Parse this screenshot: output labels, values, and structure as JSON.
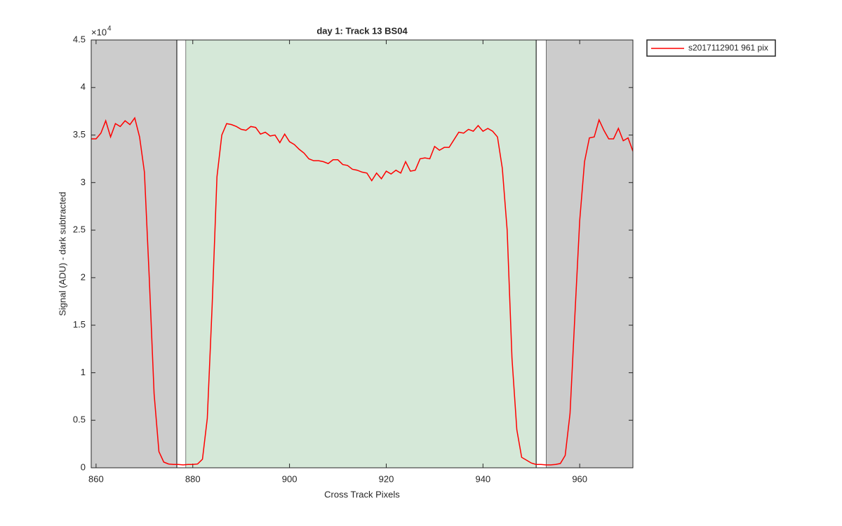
{
  "chart_data": {
    "type": "line",
    "title": "day 1: Track 13  BS04",
    "xlabel": "Cross Track Pixels",
    "ylabel": "Signal (ADU) - dark subtracted",
    "yscale_base": "×10",
    "yscale_exponent": "4",
    "xlim": [
      859,
      971
    ],
    "ylim": [
      0,
      45000
    ],
    "xticks": [
      860,
      880,
      900,
      920,
      940,
      960
    ],
    "yticks": [
      0,
      {
        "value": 5000,
        "label": "0.5"
      },
      {
        "value": 10000,
        "label": "1"
      },
      {
        "value": 15000,
        "label": "1.5"
      },
      {
        "value": 20000,
        "label": "2"
      },
      {
        "value": 25000,
        "label": "2.5"
      },
      {
        "value": 30000,
        "label": "3"
      },
      {
        "value": 35000,
        "label": "3.5"
      },
      {
        "value": 40000,
        "label": "4"
      },
      {
        "value": 45000,
        "label": "4.5"
      }
    ],
    "grid": false,
    "legend": "outside-top-right",
    "regions": [
      {
        "x0": 859,
        "x1": 876.7,
        "color": "#cccccc"
      },
      {
        "x0": 876.7,
        "x1": 878.6,
        "color": "#ffffff"
      },
      {
        "x0": 878.6,
        "x1": 951.0,
        "color": "#d5e8d8"
      },
      {
        "x0": 951.0,
        "x1": 953.1,
        "color": "#ffffff"
      },
      {
        "x0": 953.1,
        "x1": 971,
        "color": "#cccccc"
      }
    ],
    "x": [
      859,
      860,
      861,
      862,
      863,
      864,
      865,
      866,
      867,
      868,
      869,
      870,
      871,
      872,
      873,
      874,
      875,
      876,
      877,
      878,
      879,
      880,
      881,
      882,
      883,
      884,
      885,
      886,
      887,
      888,
      889,
      890,
      891,
      892,
      893,
      894,
      895,
      896,
      897,
      898,
      899,
      900,
      901,
      902,
      903,
      904,
      905,
      906,
      907,
      908,
      909,
      910,
      911,
      912,
      913,
      914,
      915,
      916,
      917,
      918,
      919,
      920,
      921,
      922,
      923,
      924,
      925,
      926,
      927,
      928,
      929,
      930,
      931,
      932,
      933,
      934,
      935,
      936,
      937,
      938,
      939,
      940,
      941,
      942,
      943,
      944,
      945,
      946,
      947,
      948,
      949,
      950,
      951,
      952,
      953,
      954,
      955,
      956,
      957,
      958,
      959,
      960,
      961,
      962,
      963,
      964,
      965,
      966,
      967,
      968,
      969,
      970,
      971
    ],
    "series": [
      {
        "name": "s2017112901 961 pix",
        "color": "#ff0000",
        "values": [
          34600,
          34600,
          35200,
          36500,
          34800,
          36200,
          35900,
          36500,
          36100,
          36800,
          34800,
          31100,
          20000,
          7800,
          1700,
          600,
          400,
          350,
          350,
          300,
          350,
          350,
          400,
          900,
          5200,
          17000,
          30600,
          35000,
          36200,
          36100,
          35900,
          35600,
          35500,
          35900,
          35800,
          35100,
          35300,
          34900,
          35000,
          34200,
          35100,
          34300,
          34000,
          33500,
          33100,
          32500,
          32300,
          32300,
          32200,
          32000,
          32400,
          32400,
          31900,
          31800,
          31400,
          31300,
          31100,
          31000,
          30200,
          31000,
          30400,
          31200,
          30900,
          31300,
          31000,
          32200,
          31200,
          31300,
          32500,
          32600,
          32500,
          33800,
          33400,
          33700,
          33700,
          34500,
          35300,
          35200,
          35600,
          35400,
          36000,
          35400,
          35700,
          35400,
          34800,
          31500,
          25000,
          11500,
          4000,
          1100,
          800,
          500,
          350,
          350,
          300,
          300,
          350,
          450,
          1300,
          5700,
          16000,
          26000,
          32200,
          34700,
          34800,
          36600,
          35500,
          34600,
          34600,
          35700,
          34400,
          34700,
          33300
        ]
      }
    ]
  }
}
